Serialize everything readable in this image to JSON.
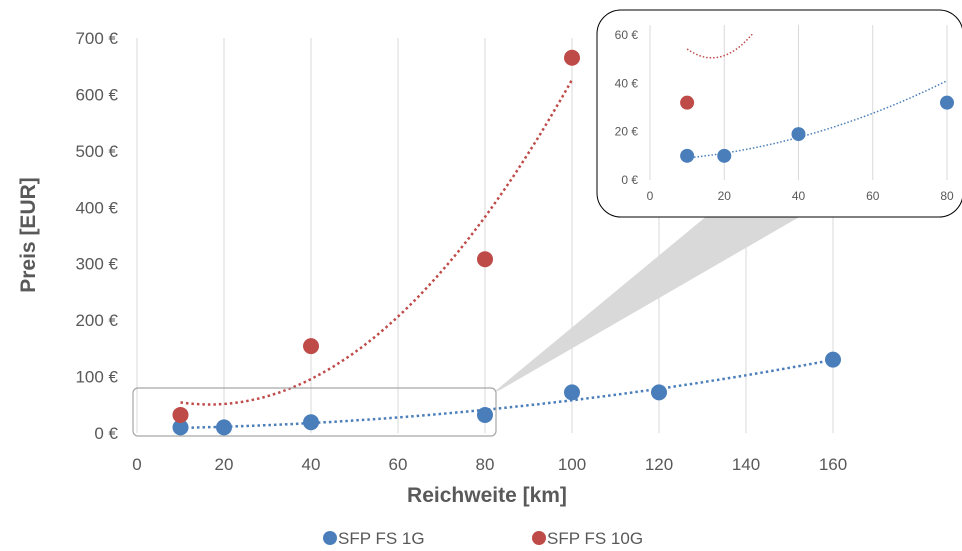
{
  "chart_data": {
    "type": "scatter",
    "xlabel": "Reichweite [km]",
    "ylabel": "Preis [EUR]",
    "xlim": [
      0,
      160
    ],
    "ylim": [
      0,
      700
    ],
    "x_ticks": [
      "0",
      "20",
      "40",
      "60",
      "80",
      "100",
      "120",
      "140",
      "160"
    ],
    "y_ticks": [
      "0 €",
      "100 €",
      "200 €",
      "300 €",
      "400 €",
      "500 €",
      "600 €",
      "700 €"
    ],
    "grid": "vertical",
    "legend_position": "bottom",
    "series": [
      {
        "name": "SFP FS 1G",
        "color": "#4a7ebb",
        "x": [
          10,
          20,
          40,
          80,
          100,
          120,
          160
        ],
        "y": [
          10,
          10,
          19,
          32,
          72,
          72,
          130
        ],
        "trendline": "polynomial, dotted"
      },
      {
        "name": "SFP FS 10G",
        "color": "#be4b48",
        "x": [
          10,
          40,
          80,
          100
        ],
        "y": [
          32,
          154,
          308,
          665
        ],
        "trendline": "polynomial, dotted"
      }
    ],
    "inset": {
      "description": "zoom",
      "xlim": [
        0,
        80
      ],
      "ylim": [
        0,
        60
      ],
      "x_ticks": [
        "0",
        "20",
        "40",
        "60",
        "80"
      ],
      "y_ticks": [
        "0 €",
        "20 €",
        "40 €",
        "60 €"
      ]
    }
  }
}
